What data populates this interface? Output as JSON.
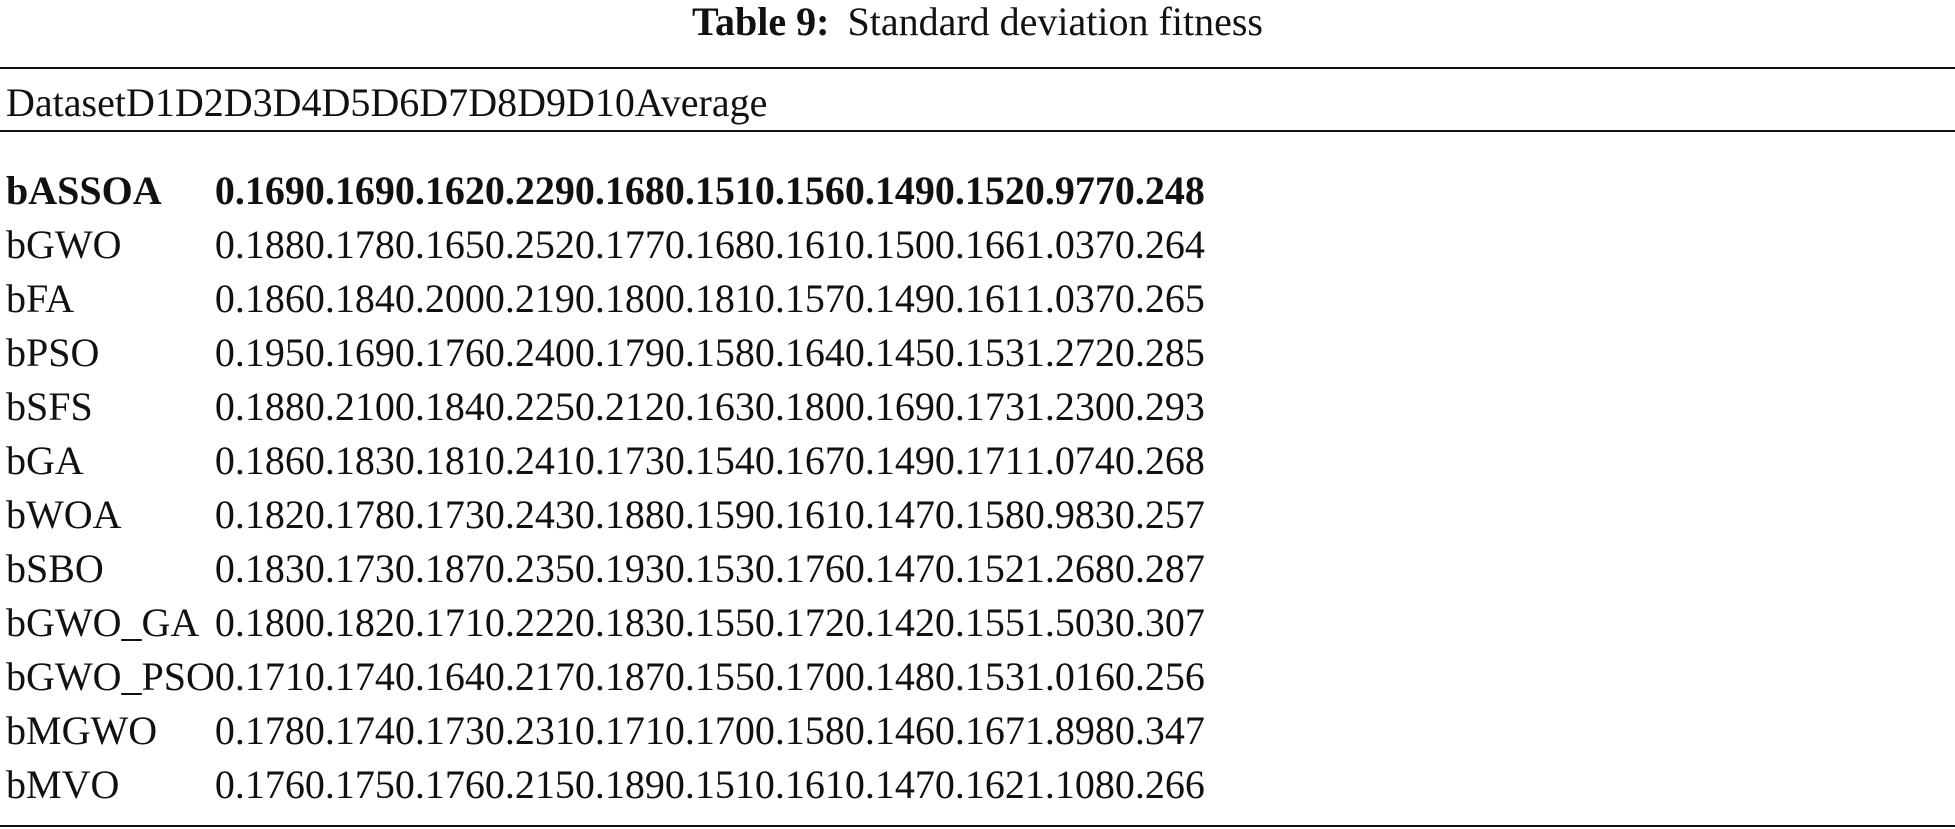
{
  "caption": {
    "label": "Table 9:",
    "text": "Standard deviation fitness"
  },
  "columns": [
    "Dataset",
    "D1",
    "D2",
    "D3",
    "D4",
    "D5",
    "D6",
    "D7",
    "D8",
    "D9",
    "D10",
    "Average"
  ],
  "rows": [
    {
      "name": "bASSOA",
      "values": [
        "0.169",
        "0.169",
        "0.162",
        "0.229",
        "0.168",
        "0.151",
        "0.156",
        "0.149",
        "0.152",
        "0.977",
        "0.248"
      ],
      "bold": true
    },
    {
      "name": "bGWO",
      "values": [
        "0.188",
        "0.178",
        "0.165",
        "0.252",
        "0.177",
        "0.168",
        "0.161",
        "0.150",
        "0.166",
        "1.037",
        "0.264"
      ]
    },
    {
      "name": "bFA",
      "values": [
        "0.186",
        "0.184",
        "0.200",
        "0.219",
        "0.180",
        "0.181",
        "0.157",
        "0.149",
        "0.161",
        "1.037",
        "0.265"
      ]
    },
    {
      "name": "bPSO",
      "values": [
        "0.195",
        "0.169",
        "0.176",
        "0.240",
        "0.179",
        "0.158",
        "0.164",
        "0.145",
        "0.153",
        "1.272",
        "0.285"
      ]
    },
    {
      "name": "bSFS",
      "values": [
        "0.188",
        "0.210",
        "0.184",
        "0.225",
        "0.212",
        "0.163",
        "0.180",
        "0.169",
        "0.173",
        "1.230",
        "0.293"
      ]
    },
    {
      "name": "bGA",
      "values": [
        "0.186",
        "0.183",
        "0.181",
        "0.241",
        "0.173",
        "0.154",
        "0.167",
        "0.149",
        "0.171",
        "1.074",
        "0.268"
      ]
    },
    {
      "name": "bWOA",
      "values": [
        "0.182",
        "0.178",
        "0.173",
        "0.243",
        "0.188",
        "0.159",
        "0.161",
        "0.147",
        "0.158",
        "0.983",
        "0.257"
      ]
    },
    {
      "name": "bSBO",
      "values": [
        "0.183",
        "0.173",
        "0.187",
        "0.235",
        "0.193",
        "0.153",
        "0.176",
        "0.147",
        "0.152",
        "1.268",
        "0.287"
      ]
    },
    {
      "name": "bGWO_GA",
      "values": [
        "0.180",
        "0.182",
        "0.171",
        "0.222",
        "0.183",
        "0.155",
        "0.172",
        "0.142",
        "0.155",
        "1.503",
        "0.307"
      ]
    },
    {
      "name": "bGWO_PSO",
      "values": [
        "0.171",
        "0.174",
        "0.164",
        "0.217",
        "0.187",
        "0.155",
        "0.170",
        "0.148",
        "0.153",
        "1.016",
        "0.256"
      ]
    },
    {
      "name": "bMGWO",
      "values": [
        "0.178",
        "0.174",
        "0.173",
        "0.231",
        "0.171",
        "0.170",
        "0.158",
        "0.146",
        "0.167",
        "1.898",
        "0.347"
      ]
    },
    {
      "name": "bMVO",
      "values": [
        "0.176",
        "0.175",
        "0.176",
        "0.215",
        "0.189",
        "0.151",
        "0.161",
        "0.147",
        "0.162",
        "1.108",
        "0.266"
      ]
    }
  ]
}
